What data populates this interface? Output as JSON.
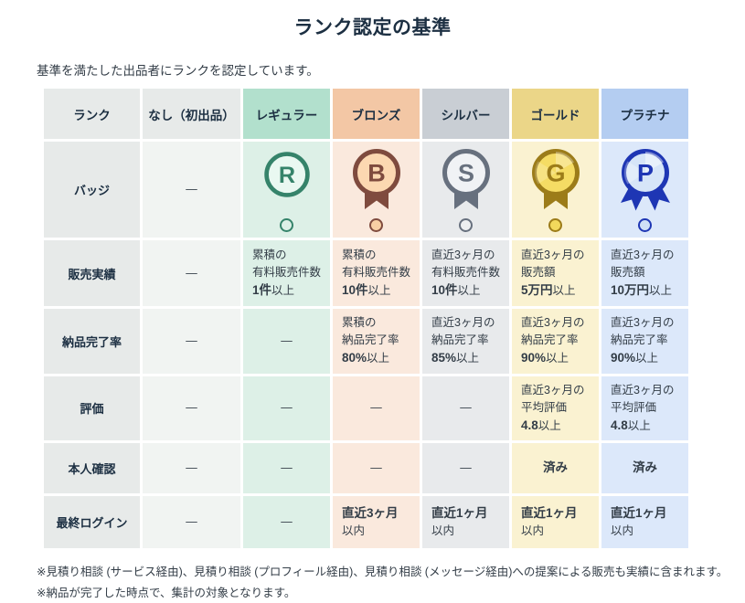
{
  "page": {
    "title": "ランク認定の基準",
    "subtitle": "基準を満たした出品者にランクを認定しています。",
    "notes": [
      "※見積り相談 (サービス経由)、見積り相談 (プロフィール経由)、見積り相談 (メッセージ経由)への提案による販売も実績に含まれます。",
      "※納品が完了した時点で、集計の対象となります。"
    ]
  },
  "table": {
    "corner_label": "ランク",
    "dash": "—",
    "columns": [
      {
        "theme": "none",
        "label": "なし（初出品）"
      },
      {
        "theme": "regular",
        "label": "レギュラー"
      },
      {
        "theme": "bronze",
        "label": "ブロンズ"
      },
      {
        "theme": "silver",
        "label": "シルバー"
      },
      {
        "theme": "gold",
        "label": "ゴールド"
      },
      {
        "theme": "platinum",
        "label": "プラチナ"
      }
    ],
    "rows": [
      {
        "key": "badge",
        "label": "バッジ",
        "cells": [
          {
            "type": "dash"
          },
          {
            "type": "badge",
            "letter": "R"
          },
          {
            "type": "badge",
            "letter": "B"
          },
          {
            "type": "badge",
            "letter": "S"
          },
          {
            "type": "badge",
            "letter": "G"
          },
          {
            "type": "badge",
            "letter": "P"
          }
        ]
      },
      {
        "key": "sales",
        "label": "販売実績",
        "cells": [
          {
            "type": "dash"
          },
          {
            "type": "text",
            "lines": [
              [
                {
                  "t": "累積の"
                }
              ],
              [
                {
                  "t": "有料販売件数"
                }
              ],
              [
                {
                  "t": "1件",
                  "b": true
                },
                {
                  "t": "以上"
                }
              ]
            ]
          },
          {
            "type": "text",
            "lines": [
              [
                {
                  "t": "累積の"
                }
              ],
              [
                {
                  "t": "有料販売件数"
                }
              ],
              [
                {
                  "t": "10件",
                  "b": true
                },
                {
                  "t": "以上"
                }
              ]
            ]
          },
          {
            "type": "text",
            "lines": [
              [
                {
                  "t": "直近3ヶ月の"
                }
              ],
              [
                {
                  "t": "有料販売件数"
                }
              ],
              [
                {
                  "t": "10件",
                  "b": true
                },
                {
                  "t": "以上"
                }
              ]
            ]
          },
          {
            "type": "text",
            "lines": [
              [
                {
                  "t": "直近3ヶ月の"
                }
              ],
              [
                {
                  "t": "販売額"
                }
              ],
              [
                {
                  "t": "5万円",
                  "b": true
                },
                {
                  "t": "以上"
                }
              ]
            ]
          },
          {
            "type": "text",
            "lines": [
              [
                {
                  "t": "直近3ヶ月の"
                }
              ],
              [
                {
                  "t": "販売額"
                }
              ],
              [
                {
                  "t": "10万円",
                  "b": true
                },
                {
                  "t": "以上"
                }
              ]
            ]
          }
        ]
      },
      {
        "key": "delivery-rate",
        "label": "納品完了率",
        "cells": [
          {
            "type": "dash"
          },
          {
            "type": "dash"
          },
          {
            "type": "text",
            "lines": [
              [
                {
                  "t": "累積の"
                }
              ],
              [
                {
                  "t": "納品完了率"
                }
              ],
              [
                {
                  "t": "80%",
                  "b": true
                },
                {
                  "t": "以上"
                }
              ]
            ]
          },
          {
            "type": "text",
            "lines": [
              [
                {
                  "t": "直近3ヶ月の"
                }
              ],
              [
                {
                  "t": "納品完了率"
                }
              ],
              [
                {
                  "t": "85%",
                  "b": true
                },
                {
                  "t": "以上"
                }
              ]
            ]
          },
          {
            "type": "text",
            "lines": [
              [
                {
                  "t": "直近3ヶ月の"
                }
              ],
              [
                {
                  "t": "納品完了率"
                }
              ],
              [
                {
                  "t": "90%",
                  "b": true
                },
                {
                  "t": "以上"
                }
              ]
            ]
          },
          {
            "type": "text",
            "lines": [
              [
                {
                  "t": "直近3ヶ月の"
                }
              ],
              [
                {
                  "t": "納品完了率"
                }
              ],
              [
                {
                  "t": "90%",
                  "b": true
                },
                {
                  "t": "以上"
                }
              ]
            ]
          }
        ]
      },
      {
        "key": "rating",
        "label": "評価",
        "cells": [
          {
            "type": "dash"
          },
          {
            "type": "dash"
          },
          {
            "type": "dash"
          },
          {
            "type": "dash"
          },
          {
            "type": "text",
            "lines": [
              [
                {
                  "t": "直近3ヶ月の"
                }
              ],
              [
                {
                  "t": "平均評価"
                }
              ],
              [
                {
                  "t": "4.8",
                  "b": true
                },
                {
                  "t": "以上"
                }
              ]
            ]
          },
          {
            "type": "text",
            "lines": [
              [
                {
                  "t": "直近3ヶ月の"
                }
              ],
              [
                {
                  "t": "平均評価"
                }
              ],
              [
                {
                  "t": "4.8",
                  "b": true
                },
                {
                  "t": "以上"
                }
              ]
            ]
          }
        ]
      },
      {
        "key": "identity-check",
        "label": "本人確認",
        "cells": [
          {
            "type": "dash"
          },
          {
            "type": "dash"
          },
          {
            "type": "dash"
          },
          {
            "type": "dash"
          },
          {
            "type": "text",
            "center": true,
            "lines": [
              [
                {
                  "t": "済み",
                  "b": true
                }
              ]
            ]
          },
          {
            "type": "text",
            "center": true,
            "lines": [
              [
                {
                  "t": "済み",
                  "b": true
                }
              ]
            ]
          }
        ]
      },
      {
        "key": "last-login",
        "label": "最終ログイン",
        "cells": [
          {
            "type": "dash"
          },
          {
            "type": "dash"
          },
          {
            "type": "text",
            "lines": [
              [
                {
                  "t": "直近3ヶ月",
                  "b": true
                }
              ],
              [
                {
                  "t": "以内"
                }
              ]
            ]
          },
          {
            "type": "text",
            "lines": [
              [
                {
                  "t": "直近1ヶ月",
                  "b": true
                }
              ],
              [
                {
                  "t": "以内"
                }
              ]
            ]
          },
          {
            "type": "text",
            "lines": [
              [
                {
                  "t": "直近1ヶ月",
                  "b": true
                }
              ],
              [
                {
                  "t": "以内"
                }
              ]
            ]
          },
          {
            "type": "text",
            "lines": [
              [
                {
                  "t": "直近1ヶ月",
                  "b": true
                }
              ],
              [
                {
                  "t": "以内"
                }
              ]
            ]
          }
        ]
      }
    ]
  },
  "colors": {
    "title_text": "#1c2f42",
    "body_text": "#333d47",
    "label_cell_bg": "#e7eae9",
    "none_head_bg": "#e7eae9",
    "none_body_bg": "#f1f4f2",
    "regular_head_bg": "#b2e0cd",
    "regular_body_bg": "#ddf0e7",
    "regular_accent": "#35836a",
    "regular_inner": "#e9f8f1",
    "regular_dot_fill": "#ddf0e7",
    "bronze_head_bg": "#f3c7a5",
    "bronze_body_bg": "#fae9dd",
    "bronze_accent": "#7f4b3e",
    "bronze_inner": "#fcd8b1",
    "bronze_dot_fill": "#f8cfa4",
    "silver_head_bg": "#c9ced4",
    "silver_body_bg": "#e8eaec",
    "silver_accent": "#67707e",
    "silver_inner": "#f0f2f5",
    "silver_dot_fill": "#edeff1",
    "gold_head_bg": "#ebd688",
    "gold_body_bg": "#faf2d1",
    "gold_accent": "#9c7c19",
    "gold_inner": "#f5dc64",
    "gold_dot_fill": "#f2d95c",
    "platinum_head_bg": "#b4cdf1",
    "platinum_body_bg": "#dce8fa",
    "platinum_accent": "#1e36b4",
    "platinum_inner": "#d6e5f8",
    "platinum_dot_fill": "#cfe0f6"
  }
}
